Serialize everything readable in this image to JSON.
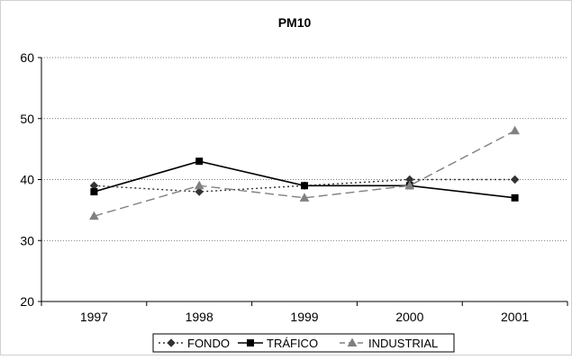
{
  "chart_data": {
    "type": "line",
    "title": "PM10",
    "categories": [
      "1997",
      "1998",
      "1999",
      "2000",
      "2001"
    ],
    "ylim": [
      20,
      60
    ],
    "yticks": [
      20,
      30,
      40,
      50,
      60
    ],
    "grid": "horizontal-dotted",
    "legend_position": "bottom",
    "series": [
      {
        "name": "FONDO",
        "values": [
          39,
          38,
          39,
          40,
          40
        ],
        "color": "#333333",
        "line_style": "dotted",
        "marker": "diamond"
      },
      {
        "name": "TRÁFICO",
        "values": [
          38,
          43,
          39,
          39,
          37
        ],
        "color": "#000000",
        "line_style": "solid",
        "marker": "square"
      },
      {
        "name": "INDUSTRIAL",
        "values": [
          34,
          39,
          37,
          39,
          48
        ],
        "color": "#808080",
        "line_style": "dashed",
        "marker": "triangle"
      }
    ]
  }
}
